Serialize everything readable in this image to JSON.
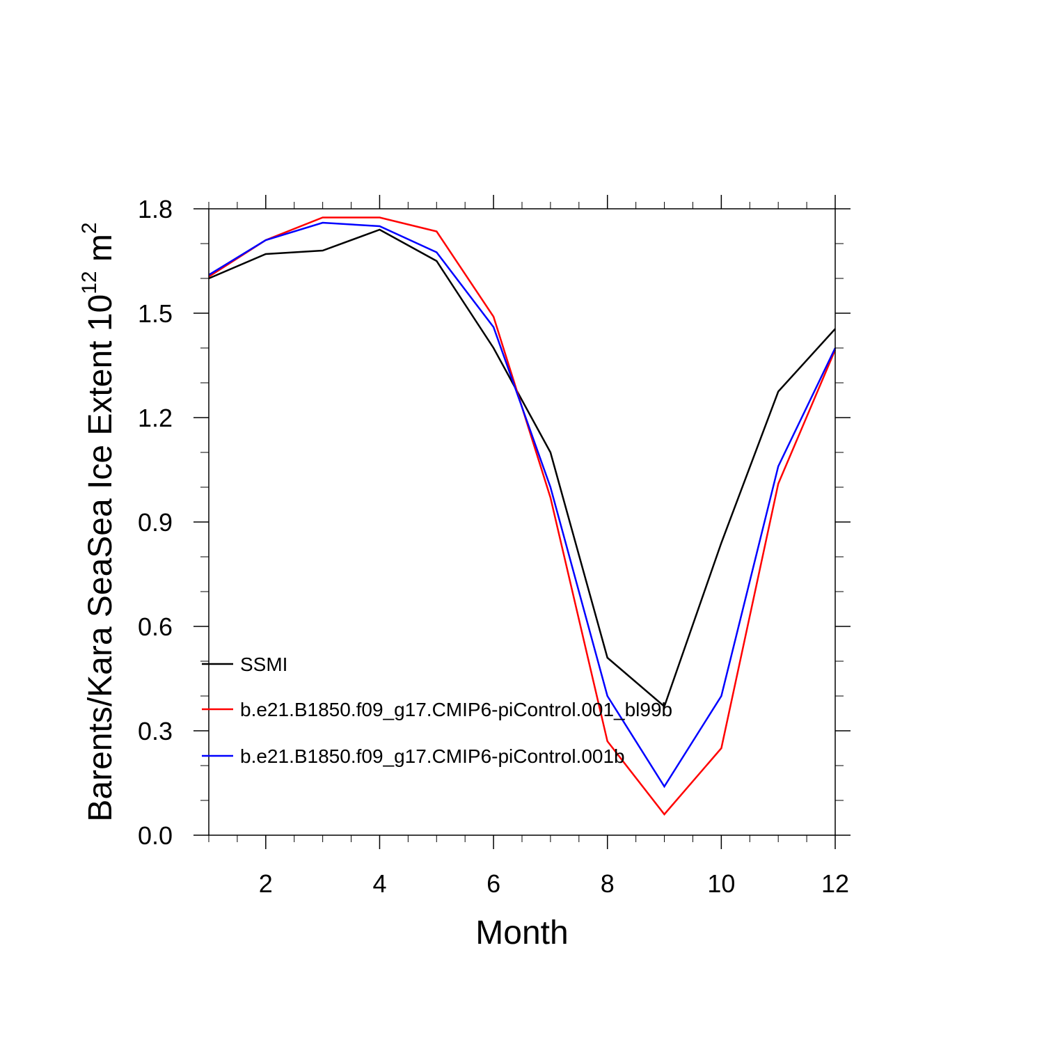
{
  "chart_data": {
    "type": "line",
    "title": "",
    "xlabel": "Month",
    "ylabel": "Barents/Kara SeaSea Ice Extent 10",
    "ylabel_exponent": "12",
    "ylabel_unit": " m",
    "ylabel_unit_exponent": "2",
    "xlim": [
      1,
      12
    ],
    "ylim": [
      0.0,
      1.8
    ],
    "xticks": [
      2,
      4,
      6,
      8,
      10,
      12
    ],
    "xtick_labels": [
      "2",
      "4",
      "6",
      "8",
      "10",
      "12"
    ],
    "yticks": [
      0.0,
      0.3,
      0.6,
      0.9,
      1.2,
      1.5,
      1.8
    ],
    "ytick_labels": [
      "0.0",
      "0.3",
      "0.6",
      "0.9",
      "1.2",
      "1.5",
      "1.8"
    ],
    "x": [
      1,
      2,
      3,
      4,
      5,
      6,
      7,
      8,
      9,
      10,
      11,
      12
    ],
    "legend_position": "lower-left",
    "series": [
      {
        "name": "SSMI",
        "color": "#000000",
        "values": [
          1.6,
          1.67,
          1.68,
          1.74,
          1.65,
          1.4,
          1.1,
          0.51,
          0.37,
          0.84,
          1.275,
          1.455
        ]
      },
      {
        "name": "b.e21.B1850.f09_g17.CMIP6-piControl.001_bl99b",
        "color": "#ff0000",
        "values": [
          1.605,
          1.71,
          1.775,
          1.775,
          1.735,
          1.49,
          0.97,
          0.27,
          0.06,
          0.25,
          1.01,
          1.395
        ]
      },
      {
        "name": "b.e21.B1850.f09_g17.CMIP6-piControl.001b",
        "color": "#0000ff",
        "values": [
          1.61,
          1.71,
          1.76,
          1.75,
          1.675,
          1.46,
          1.0,
          0.4,
          0.14,
          0.4,
          1.06,
          1.4
        ]
      }
    ]
  }
}
